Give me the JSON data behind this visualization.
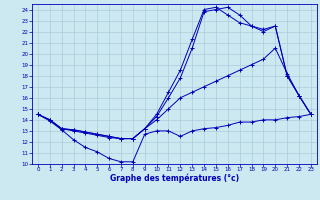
{
  "xlabel": "Graphe des températures (°c)",
  "xlim": [
    -0.5,
    23.5
  ],
  "ylim": [
    10,
    24.5
  ],
  "xticks": [
    0,
    1,
    2,
    3,
    4,
    5,
    6,
    7,
    8,
    9,
    10,
    11,
    12,
    13,
    14,
    15,
    16,
    17,
    18,
    19,
    20,
    21,
    22,
    23
  ],
  "yticks": [
    10,
    11,
    12,
    13,
    14,
    15,
    16,
    17,
    18,
    19,
    20,
    21,
    22,
    23,
    24
  ],
  "bg_color": "#cce8f0",
  "line_color": "#0000bb",
  "grid_color": "#aaccdd",
  "curves": [
    {
      "x": [
        0,
        1,
        2,
        3,
        4,
        5,
        6,
        7,
        8,
        9,
        10,
        11,
        12,
        13,
        14,
        15,
        16,
        17,
        18,
        19,
        20,
        21,
        22,
        23
      ],
      "y": [
        14.5,
        13.9,
        13.1,
        12.2,
        11.5,
        11.1,
        10.5,
        10.2,
        10.2,
        12.7,
        13.0,
        13.0,
        12.5,
        13.0,
        13.2,
        13.3,
        13.5,
        13.8,
        13.8,
        14.0,
        14.0,
        14.2,
        14.3,
        14.5
      ]
    },
    {
      "x": [
        0,
        1,
        2,
        3,
        4,
        5,
        6,
        7,
        8,
        9,
        10,
        11,
        12,
        13,
        14,
        15,
        16,
        17,
        18,
        19,
        20,
        21,
        22,
        23
      ],
      "y": [
        14.5,
        14.0,
        13.2,
        13.0,
        12.8,
        12.6,
        12.4,
        12.3,
        12.3,
        13.2,
        14.0,
        15.0,
        16.0,
        16.5,
        17.0,
        17.5,
        18.0,
        18.5,
        19.0,
        19.5,
        20.5,
        18.2,
        16.2,
        14.5
      ]
    },
    {
      "x": [
        0,
        1,
        2,
        3,
        4,
        5,
        6,
        7,
        8,
        9,
        10,
        11,
        12,
        13,
        14,
        15,
        16,
        17,
        18,
        19,
        20,
        21,
        22,
        23
      ],
      "y": [
        14.5,
        14.0,
        13.2,
        13.1,
        12.9,
        12.7,
        12.5,
        12.3,
        12.3,
        13.2,
        14.5,
        16.5,
        18.5,
        21.3,
        24.0,
        24.2,
        23.5,
        22.8,
        22.5,
        22.2,
        22.5,
        18.0,
        16.2,
        14.5
      ]
    },
    {
      "x": [
        0,
        1,
        2,
        3,
        4,
        5,
        6,
        7,
        8,
        9,
        10,
        11,
        12,
        13,
        14,
        15,
        16,
        17,
        18,
        19,
        20,
        21,
        22,
        23
      ],
      "y": [
        14.5,
        14.0,
        13.2,
        13.1,
        12.9,
        12.7,
        12.5,
        12.3,
        12.3,
        13.2,
        14.3,
        16.0,
        17.8,
        20.5,
        23.8,
        24.0,
        24.2,
        23.5,
        22.5,
        22.0,
        22.5,
        18.0,
        16.2,
        14.5
      ]
    }
  ]
}
